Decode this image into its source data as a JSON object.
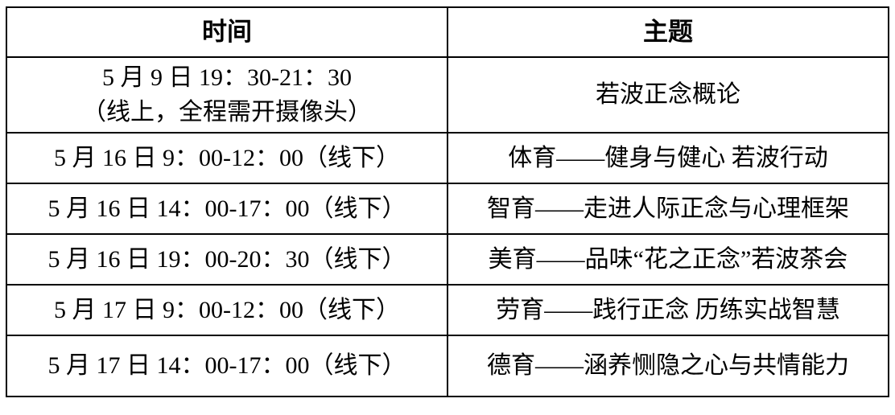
{
  "table": {
    "columns": [
      {
        "label": "时间"
      },
      {
        "label": "主题"
      }
    ],
    "rows": [
      {
        "time": "5 月 9 日 19：30-21：30",
        "time_line2": "（线上，全程需开摄像头）",
        "topic": "若波正念概论"
      },
      {
        "time": "5 月 16 日 9：00-12：00（线下）",
        "time_line2": "",
        "topic": "体育——健身与健心 若波行动"
      },
      {
        "time": "5 月 16 日 14：00-17：00（线下）",
        "time_line2": "",
        "topic": "智育——走进人际正念与心理框架"
      },
      {
        "time": "5 月 16 日 19：00-20：30（线下）",
        "time_line2": "",
        "topic": "美育——品味“花之正念”若波茶会"
      },
      {
        "time": "5 月 17 日 9：00-12：00（线下）",
        "time_line2": "",
        "topic": "劳育——践行正念 历练实战智慧"
      },
      {
        "time": "5 月 17 日 14：00-17：00（线下）",
        "time_line2": "",
        "topic": "德育——涵养恻隐之心与共情能力"
      }
    ]
  },
  "colors": {
    "border": "#000000",
    "text": "#000000",
    "background": "#ffffff"
  }
}
